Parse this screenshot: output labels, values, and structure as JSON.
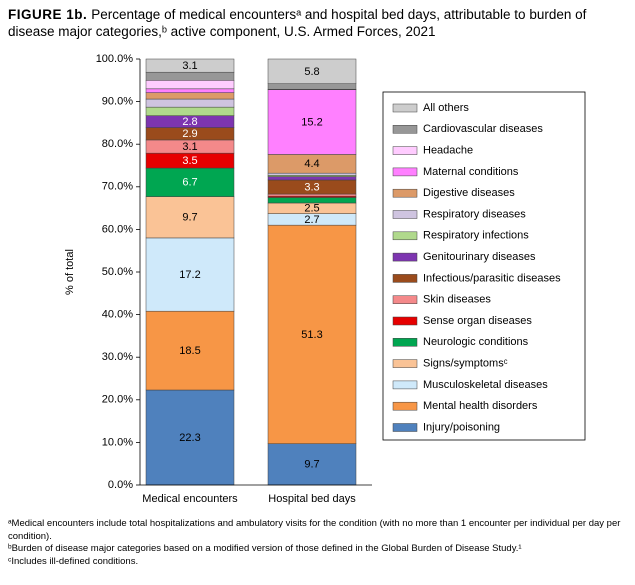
{
  "chart_data": {
    "type": "bar",
    "stacked": true,
    "title_label": "FIGURE 1b.",
    "title": "Percentage of medical encountersᵃ and hospital bed days, attributable to burden of disease major categories,ᵇ active component, U.S. Armed Forces, 2021",
    "ylabel": "% of total",
    "categories": [
      "Medical encounters",
      "Hospital bed days"
    ],
    "ylim": [
      0,
      100
    ],
    "yticks": [
      {
        "value": 0,
        "label": "0.0%"
      },
      {
        "value": 10,
        "label": "10.0%"
      },
      {
        "value": 20,
        "label": "20.0%"
      },
      {
        "value": 30,
        "label": "30.0%"
      },
      {
        "value": 40,
        "label": "40.0%"
      },
      {
        "value": 50,
        "label": "50.0%"
      },
      {
        "value": 60,
        "label": "60.0%"
      },
      {
        "value": 70,
        "label": "70.0%"
      },
      {
        "value": 80,
        "label": "80.0%"
      },
      {
        "value": 90,
        "label": "90.0%"
      },
      {
        "value": 100,
        "label": "100.0%"
      }
    ],
    "grid": false,
    "legend": "right",
    "series": [
      {
        "name": "Injury/poisoning",
        "color": "#4f81bd",
        "values": [
          22.3,
          9.7
        ],
        "value_labels": [
          "22.3",
          "9.7"
        ]
      },
      {
        "name": "Mental health disorders",
        "color": "#f79646",
        "values": [
          18.5,
          51.3
        ],
        "value_labels": [
          "18.5",
          "51.3"
        ]
      },
      {
        "name": "Musculoskeletal diseases",
        "color": "#cfe9fa",
        "values": [
          17.2,
          2.7
        ],
        "value_labels": [
          "17.2",
          "2.7"
        ]
      },
      {
        "name": "Signs/symptomsᶜ",
        "color": "#fac396",
        "values": [
          9.7,
          2.5
        ],
        "value_labels": [
          "9.7",
          "2.5"
        ]
      },
      {
        "name": "Neurologic conditions",
        "color": "#00a651",
        "values": [
          6.7,
          1.3
        ],
        "value_labels": [
          "6.7",
          null
        ]
      },
      {
        "name": "Sense organ diseases",
        "color": "#e60000",
        "values": [
          3.5,
          0.3
        ],
        "value_labels": [
          "3.5",
          null
        ]
      },
      {
        "name": "Skin diseases",
        "color": "#f4898a",
        "values": [
          3.1,
          0.5
        ],
        "value_labels": [
          "3.1",
          null
        ]
      },
      {
        "name": "Infectious/parasitic diseases",
        "color": "#9a4b1c",
        "values": [
          2.9,
          3.3
        ],
        "value_labels": [
          "2.9",
          "3.3"
        ]
      },
      {
        "name": "Genitourinary diseases",
        "color": "#7d35b0",
        "values": [
          2.8,
          0.8
        ],
        "value_labels": [
          "2.8",
          null
        ]
      },
      {
        "name": "Respiratory infections",
        "color": "#b0d98c",
        "values": [
          2.0,
          0.3
        ],
        "value_labels": [
          null,
          null
        ]
      },
      {
        "name": "Respiratory diseases",
        "color": "#cfc4e0",
        "values": [
          1.9,
          0.5
        ],
        "value_labels": [
          null,
          null
        ]
      },
      {
        "name": "Digestive diseases",
        "color": "#dc9a68",
        "values": [
          1.5,
          4.4
        ],
        "value_labels": [
          null,
          "4.4"
        ]
      },
      {
        "name": "Maternal conditions",
        "color": "#ff80ff",
        "values": [
          0.9,
          15.2
        ],
        "value_labels": [
          null,
          "15.2"
        ]
      },
      {
        "name": "Headache",
        "color": "#ffccff",
        "values": [
          2.0,
          0.1
        ],
        "value_labels": [
          null,
          null
        ]
      },
      {
        "name": "Cardiovascular diseases",
        "color": "#979797",
        "values": [
          1.9,
          1.3
        ],
        "value_labels": [
          null,
          null
        ]
      },
      {
        "name": "All others",
        "color": "#cdcdcd",
        "values": [
          3.1,
          5.8
        ],
        "value_labels": [
          "3.1",
          "5.8"
        ]
      }
    ],
    "footnotes": [
      "ᵃMedical encounters include total hospitalizations and ambulatory visits for the condition (with no more than 1 encounter per individual per day per condition).",
      "ᵇBurden of disease major categories based on a modified version of those defined in the Global Burden of Disease Study.¹",
      "ᶜIncludes ill-defined conditions."
    ]
  }
}
